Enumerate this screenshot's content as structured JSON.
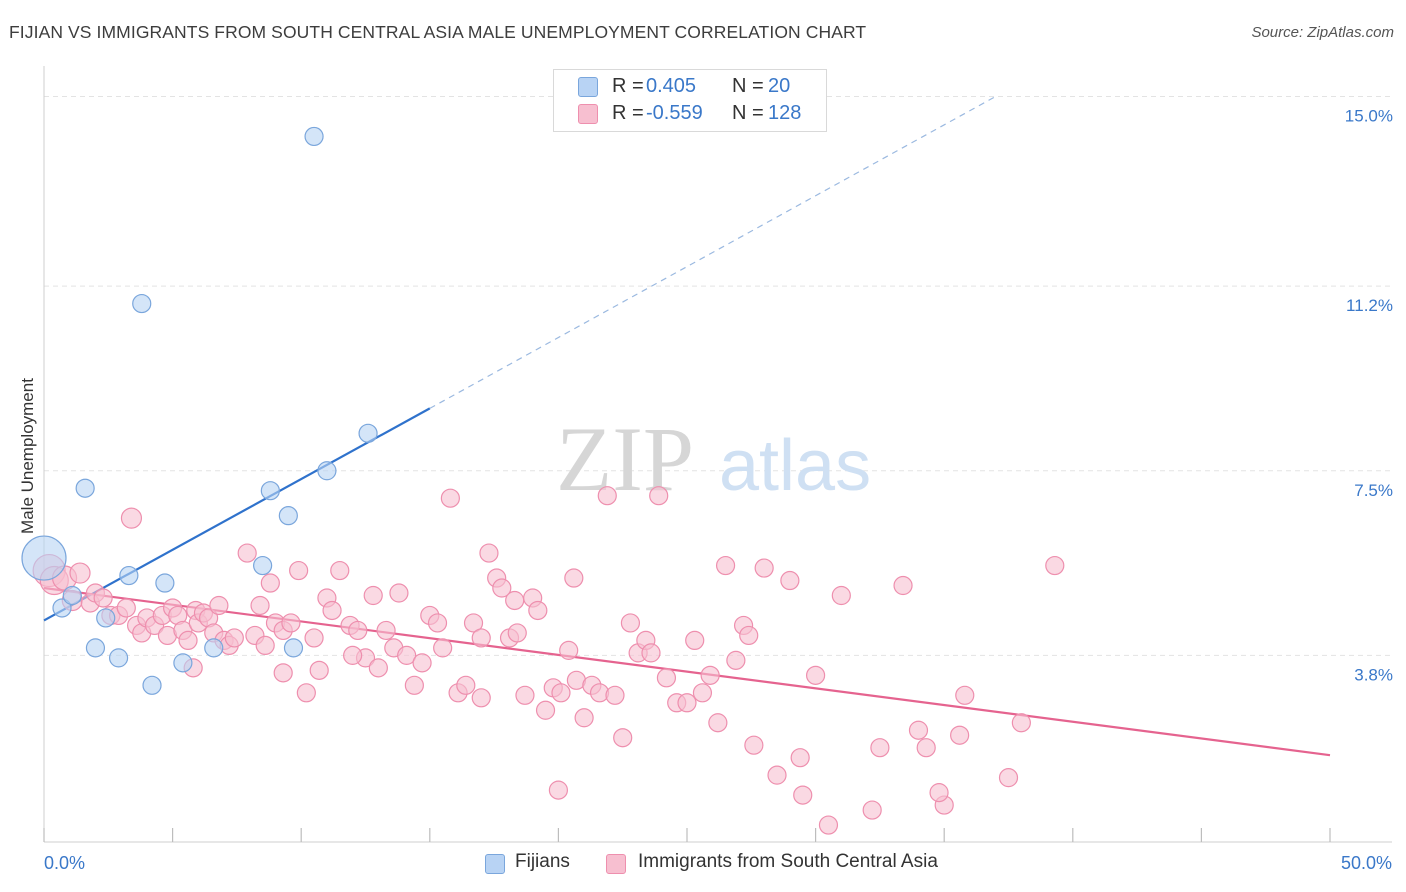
{
  "title": "FIJIAN VS IMMIGRANTS FROM SOUTH CENTRAL ASIA MALE UNEMPLOYMENT CORRELATION CHART",
  "source": "Source: ZipAtlas.com",
  "watermark": {
    "zip": "ZIP",
    "atlas": "atlas"
  },
  "colors": {
    "blue_fill": "#b8d3f4",
    "blue_stroke": "#7aa6dc",
    "blue_line": "#2f72cc",
    "pink_fill": "#f7bfd0",
    "pink_stroke": "#ee8fae",
    "pink_line": "#e5638f",
    "value_text": "#3a78c9",
    "grid": "#e3e3e3"
  },
  "legend": {
    "rows": [
      {
        "r_label": "R =",
        "r_value": " 0.405",
        "n_label": "N =",
        "n_value": " 20"
      },
      {
        "r_label": "R =",
        "r_value": "-0.559",
        "n_label": "N =",
        "n_value": "128"
      }
    ]
  },
  "bottom_legend": [
    "Fijians",
    "Immigrants from South Central Asia"
  ],
  "chart_data": {
    "type": "scatter",
    "ylabel": "Male Unemployment",
    "xlim": [
      0,
      50
    ],
    "ylim": [
      0,
      15.8
    ],
    "x_tick_labels": [
      "0.0%",
      "50.0%"
    ],
    "y_ticks": [
      3.8,
      7.5,
      11.2,
      15.0
    ],
    "y_tick_labels": [
      "3.8%",
      "7.5%",
      "11.2%",
      "15.0%"
    ],
    "grid": "horizontal dashed",
    "legend_position": "top-center",
    "series": [
      {
        "name": "Fijians",
        "R": 0.405,
        "N": 20,
        "trend": {
          "x0": 0,
          "y0": 4.5,
          "x1": 15,
          "y1": 8.75,
          "dash_to_x": 37,
          "dash_to_y": 15.0
        },
        "points": [
          [
            0.0,
            5.75,
            22
          ],
          [
            0.7,
            4.75,
            9
          ],
          [
            1.1,
            5.0,
            9
          ],
          [
            1.6,
            7.15,
            9
          ],
          [
            2.0,
            3.95,
            9
          ],
          [
            2.4,
            4.55,
            9
          ],
          [
            2.9,
            3.75,
            9
          ],
          [
            3.3,
            5.4,
            9
          ],
          [
            3.8,
            10.85,
            9
          ],
          [
            4.2,
            3.2,
            9
          ],
          [
            4.7,
            5.25,
            9
          ],
          [
            5.4,
            3.65,
            9
          ],
          [
            6.6,
            3.95,
            9
          ],
          [
            8.5,
            5.6,
            9
          ],
          [
            8.8,
            7.1,
            9
          ],
          [
            9.5,
            6.6,
            9
          ],
          [
            9.7,
            3.95,
            9
          ],
          [
            10.5,
            14.2,
            9
          ],
          [
            11.0,
            7.5,
            9
          ],
          [
            12.6,
            8.25,
            9
          ]
        ]
      },
      {
        "name": "Immigrants from South Central Asia",
        "R": -0.559,
        "N": 128,
        "trend": {
          "x0": 0,
          "y0": 5.15,
          "x1": 50,
          "y1": 1.8
        },
        "points": [
          [
            0.2,
            5.5,
            16
          ],
          [
            0.4,
            5.3,
            14
          ],
          [
            0.8,
            5.35,
            12
          ],
          [
            1.1,
            4.9,
            10
          ],
          [
            1.4,
            5.45,
            10
          ],
          [
            1.8,
            4.85,
            9
          ],
          [
            2.0,
            5.05,
            9
          ],
          [
            2.3,
            4.95,
            9
          ],
          [
            2.6,
            4.6,
            9
          ],
          [
            2.9,
            4.6,
            9
          ],
          [
            3.2,
            4.75,
            9
          ],
          [
            3.4,
            6.55,
            10
          ],
          [
            3.6,
            4.4,
            9
          ],
          [
            3.8,
            4.25,
            9
          ],
          [
            4.0,
            4.55,
            9
          ],
          [
            4.3,
            4.4,
            9
          ],
          [
            4.6,
            4.6,
            9
          ],
          [
            4.8,
            4.2,
            9
          ],
          [
            5.0,
            4.75,
            9
          ],
          [
            5.2,
            4.6,
            9
          ],
          [
            5.4,
            4.3,
            9
          ],
          [
            5.6,
            4.1,
            9
          ],
          [
            5.9,
            4.7,
            9
          ],
          [
            6.0,
            4.45,
            9
          ],
          [
            6.2,
            4.65,
            9
          ],
          [
            6.4,
            4.55,
            9
          ],
          [
            6.6,
            4.25,
            9
          ],
          [
            6.8,
            4.8,
            9
          ],
          [
            7.0,
            4.1,
            9
          ],
          [
            7.2,
            4.0,
            9
          ],
          [
            7.4,
            4.15,
            9
          ],
          [
            7.9,
            5.85,
            9
          ],
          [
            8.2,
            4.2,
            9
          ],
          [
            8.4,
            4.8,
            9
          ],
          [
            8.6,
            4.0,
            9
          ],
          [
            8.8,
            5.25,
            9
          ],
          [
            9.0,
            4.45,
            9
          ],
          [
            9.3,
            4.3,
            9
          ],
          [
            9.6,
            4.45,
            9
          ],
          [
            9.9,
            5.5,
            9
          ],
          [
            10.2,
            3.05,
            9
          ],
          [
            10.5,
            4.15,
            9
          ],
          [
            10.7,
            3.5,
            9
          ],
          [
            11.0,
            4.95,
            9
          ],
          [
            11.2,
            4.7,
            9
          ],
          [
            11.5,
            5.5,
            9
          ],
          [
            11.9,
            4.4,
            9
          ],
          [
            12.2,
            4.3,
            9
          ],
          [
            12.5,
            3.75,
            9
          ],
          [
            12.8,
            5.0,
            9
          ],
          [
            13.0,
            3.55,
            9
          ],
          [
            13.3,
            4.3,
            9
          ],
          [
            13.6,
            3.95,
            9
          ],
          [
            13.8,
            5.05,
            9
          ],
          [
            14.1,
            3.8,
            9
          ],
          [
            14.4,
            3.2,
            9
          ],
          [
            14.7,
            3.65,
            9
          ],
          [
            15.0,
            4.6,
            9
          ],
          [
            15.3,
            4.45,
            9
          ],
          [
            15.5,
            3.95,
            9
          ],
          [
            15.8,
            6.95,
            9
          ],
          [
            16.1,
            3.05,
            9
          ],
          [
            16.4,
            3.2,
            9
          ],
          [
            16.7,
            4.45,
            9
          ],
          [
            17.0,
            4.15,
            9
          ],
          [
            17.3,
            5.85,
            9
          ],
          [
            17.6,
            5.35,
            9
          ],
          [
            17.8,
            5.15,
            9
          ],
          [
            18.1,
            4.15,
            9
          ],
          [
            18.4,
            4.25,
            9
          ],
          [
            18.7,
            3.0,
            9
          ],
          [
            19.0,
            4.95,
            9
          ],
          [
            19.2,
            4.7,
            9
          ],
          [
            19.5,
            2.7,
            9
          ],
          [
            19.8,
            3.15,
            9
          ],
          [
            20.1,
            3.05,
            9
          ],
          [
            20.4,
            3.9,
            9
          ],
          [
            20.7,
            3.3,
            9
          ],
          [
            21.0,
            2.55,
            9
          ],
          [
            21.3,
            3.2,
            9
          ],
          [
            21.6,
            3.05,
            9
          ],
          [
            21.9,
            7.0,
            9
          ],
          [
            22.2,
            3.0,
            9
          ],
          [
            22.5,
            2.15,
            9
          ],
          [
            22.8,
            4.45,
            9
          ],
          [
            23.1,
            3.85,
            9
          ],
          [
            23.4,
            4.1,
            9
          ],
          [
            23.6,
            3.85,
            9
          ],
          [
            23.9,
            7.0,
            9
          ],
          [
            24.2,
            3.35,
            9
          ],
          [
            24.6,
            2.85,
            9
          ],
          [
            25.0,
            2.85,
            9
          ],
          [
            25.3,
            4.1,
            9
          ],
          [
            25.6,
            3.05,
            9
          ],
          [
            25.9,
            3.4,
            9
          ],
          [
            26.2,
            2.45,
            9
          ],
          [
            26.5,
            5.6,
            9
          ],
          [
            26.9,
            3.7,
            9
          ],
          [
            27.2,
            4.4,
            9
          ],
          [
            27.6,
            2.0,
            9
          ],
          [
            28.0,
            5.55,
            9
          ],
          [
            28.5,
            1.4,
            9
          ],
          [
            29.0,
            5.3,
            9
          ],
          [
            29.4,
            1.75,
            9
          ],
          [
            30.0,
            3.4,
            9
          ],
          [
            30.5,
            0.4,
            9
          ],
          [
            31.0,
            5.0,
            9
          ],
          [
            32.2,
            0.7,
            9
          ],
          [
            32.5,
            1.95,
            9
          ],
          [
            33.4,
            5.2,
            9
          ],
          [
            34.0,
            2.3,
            9
          ],
          [
            34.3,
            1.95,
            9
          ],
          [
            35.0,
            0.8,
            9
          ],
          [
            35.6,
            2.2,
            9
          ],
          [
            35.8,
            3.0,
            9
          ],
          [
            37.5,
            1.35,
            9
          ],
          [
            38.0,
            2.45,
            9
          ],
          [
            39.3,
            5.6,
            9
          ],
          [
            18.3,
            4.9,
            9
          ],
          [
            12.0,
            3.8,
            9
          ],
          [
            17.0,
            2.95,
            9
          ],
          [
            20.6,
            5.35,
            9
          ],
          [
            29.5,
            1.0,
            9
          ],
          [
            34.8,
            1.05,
            9
          ],
          [
            27.4,
            4.2,
            9
          ],
          [
            9.3,
            3.45,
            9
          ],
          [
            5.8,
            3.55,
            9
          ],
          [
            20.0,
            1.1,
            9
          ]
        ]
      }
    ]
  }
}
